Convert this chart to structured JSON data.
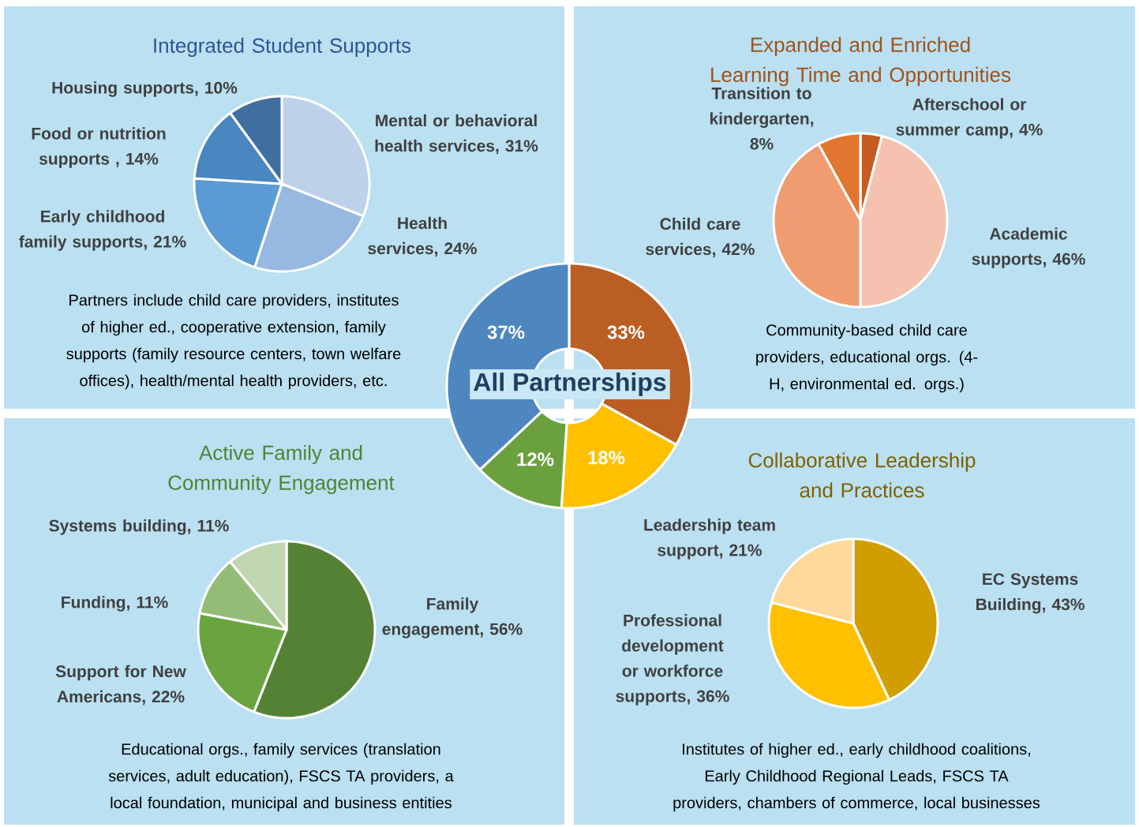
{
  "chart_data": [
    {
      "type": "pie",
      "title": "Integrated Student Supports",
      "categories": [
        "Mental or behavioral health services, 31%",
        "Health services, 24%",
        "Early childhood family supports, 21%",
        "Food or nutrition supports , 14%",
        "Housing supports, 10%"
      ],
      "values": [
        31,
        24,
        21,
        14,
        10
      ],
      "colors": [
        "#bdd1ea",
        "#97b8e0",
        "#5b9bd5",
        "#4a86c0",
        "#3f6f9f"
      ],
      "annotations": [
        "Partners include child care providers, institutes of higher ed., cooperative extension, family supports (family resource centers, town welfare offices), health/mental health providers, etc."
      ]
    },
    {
      "type": "pie",
      "title": "Expanded and Enriched Learning Time and Opportunities",
      "categories": [
        "Afterschool or summer camp, 4%",
        "Academic supports, 46%",
        "Child care services, 42%",
        "Transition to kindergarten, 8%"
      ],
      "values": [
        4,
        46,
        42,
        8
      ],
      "colors": [
        "#c55a22",
        "#f4c2ae",
        "#f09b70",
        "#e07630"
      ],
      "annotations": [
        "Community-based child care providers, educational orgs. (4-H, environmental ed. orgs.)"
      ]
    },
    {
      "type": "pie",
      "title": "Active Family and Community Engagement",
      "categories": [
        "Family engagement, 56%",
        "Support for New Americans, 22%",
        "Funding, 11%",
        "Systems building, 11%"
      ],
      "values": [
        56,
        22,
        11,
        11
      ],
      "colors": [
        "#548235",
        "#6aa440",
        "#93bd76",
        "#c0d6b0"
      ],
      "annotations": [
        "Educational orgs., family services (translation services, adult education), FSCS TA providers, a local foundation, municipal and business entities"
      ]
    },
    {
      "type": "pie",
      "title": "Collaborative Leadership and Practices",
      "categories": [
        "EC Systems Building, 43%",
        "Professional development or workforce supports, 36%",
        "Leadership team support, 21%"
      ],
      "values": [
        43,
        36,
        21
      ],
      "colors": [
        "#d09e00",
        "#ffc000",
        "#ffd99a"
      ],
      "annotations": [
        "Institutes of higher ed., early childhood coalitions, Early Childhood Regional Leads, FSCS TA providers, chambers of commerce, local businesses"
      ]
    },
    {
      "type": "donut",
      "title": "All Partnerships",
      "categories": [
        null,
        null,
        null,
        null
      ],
      "values": [
        33,
        18,
        12,
        37
      ],
      "value_labels": [
        "33%",
        "18%",
        "12%",
        "37%"
      ],
      "colors": [
        "#bb5e24",
        "#ffc000",
        "#6ba03f",
        "#4e86c0"
      ]
    }
  ]
}
